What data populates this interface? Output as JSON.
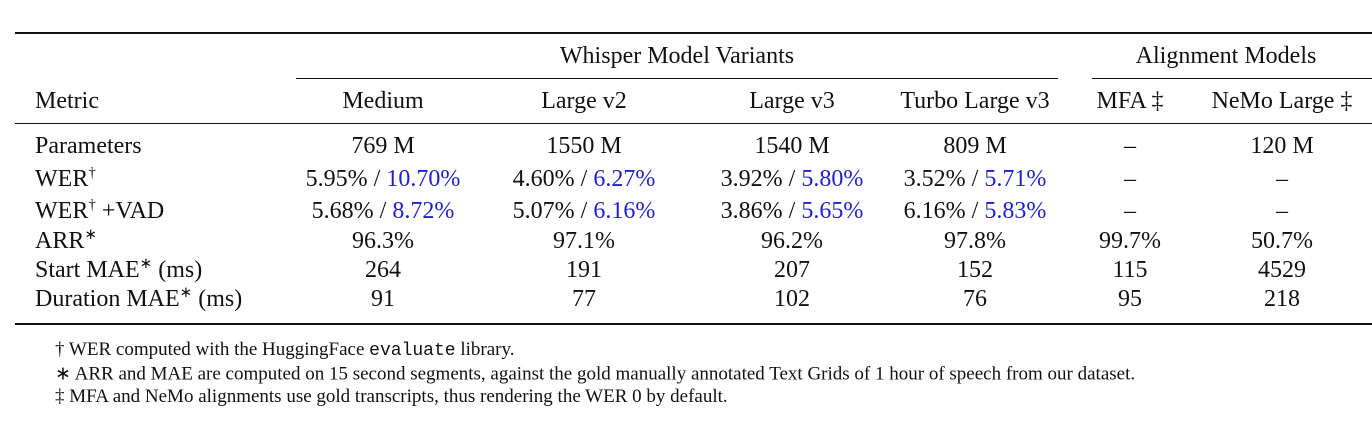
{
  "table": {
    "groups": [
      "Whisper Model Variants",
      "Alignment Models"
    ],
    "columns": [
      "Metric",
      "Medium",
      "Large v2",
      "Large v3",
      "Turbo Large v3",
      "MFA ‡",
      "NeMo Large ‡"
    ],
    "pair_separator": "/",
    "rows": [
      {
        "metric": "Parameters",
        "cells": [
          "769 M",
          "1550 M",
          "1540 M",
          "809 M",
          "–",
          "120 M"
        ]
      },
      {
        "metric": "WER",
        "mark": "†",
        "cells": [
          [
            "5.95%",
            "10.70%"
          ],
          [
            "4.60%",
            "6.27%"
          ],
          [
            "3.92%",
            "5.80%"
          ],
          [
            "3.52%",
            "5.71%"
          ],
          "–",
          "–"
        ]
      },
      {
        "metric": "WER",
        "mark": "†",
        "suffix": "+VAD",
        "cells": [
          [
            "5.68%",
            "8.72%"
          ],
          [
            "5.07%",
            "6.16%"
          ],
          [
            "3.86%",
            "5.65%"
          ],
          [
            "6.16%",
            "5.83%"
          ],
          "–",
          "–"
        ]
      },
      {
        "metric": "ARR",
        "mark": "∗",
        "cells": [
          "96.3%",
          "97.1%",
          "96.2%",
          "97.8%",
          "99.7%",
          "50.7%"
        ]
      },
      {
        "metric": "Start MAE",
        "mark": "∗",
        "suffix": "(ms)",
        "cells": [
          "264",
          "191",
          "207",
          "152",
          "115",
          "4529"
        ]
      },
      {
        "metric": "Duration MAE",
        "mark": "∗",
        "suffix": "(ms)",
        "cells": [
          "91",
          "77",
          "102",
          "76",
          "95",
          "218"
        ]
      }
    ]
  },
  "footnotes": [
    {
      "symbol": "†",
      "pre": "WER computed with the HuggingFace",
      "code": "evaluate",
      "post": "library."
    },
    {
      "symbol": "∗",
      "pre": "ARR and MAE are computed on 15 second segments, against the gold manually annotated Text Grids of 1 hour of speech from our dataset."
    },
    {
      "symbol": "‡",
      "pre": "MFA and NeMo alignments use gold transcripts, thus rendering the WER 0 by default."
    }
  ]
}
